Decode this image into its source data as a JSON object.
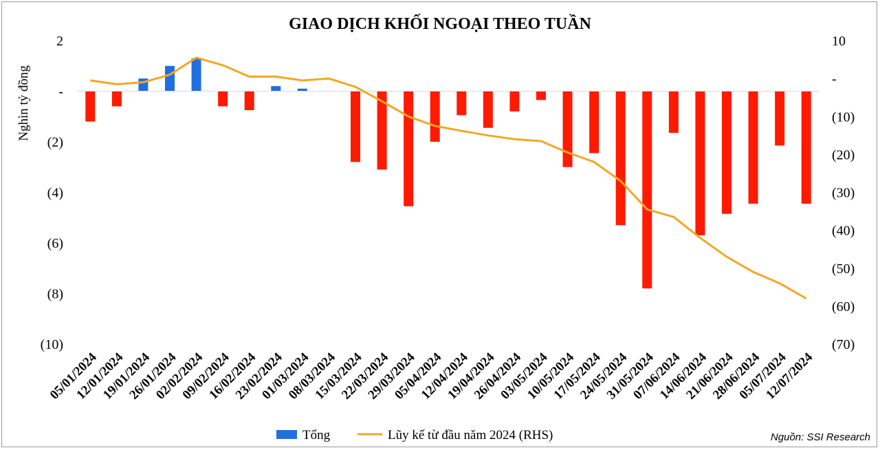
{
  "chart_data": {
    "type": "bar",
    "title": "GIAO DỊCH KHỐI NGOẠI THEO TUẦN",
    "ylabel": "Nghìn tỷ đồng",
    "source": "Nguồn: SSI Research",
    "categories": [
      "05/01/2024",
      "12/01/2024",
      "19/01/2024",
      "26/01/2024",
      "02/02/2024",
      "09/02/2024",
      "16/02/2024",
      "23/02/2024",
      "01/03/2024",
      "08/03/2024",
      "15/03/2024",
      "22/03/2024",
      "29/03/2024",
      "05/04/2024",
      "12/04/2024",
      "19/04/2024",
      "26/04/2024",
      "03/05/2024",
      "10/05/2024",
      "17/05/2024",
      "24/05/2024",
      "31/05/2024",
      "07/06/2024",
      "14/06/2024",
      "21/06/2024",
      "28/06/2024",
      "05/07/2024",
      "12/07/2024"
    ],
    "series": [
      {
        "name": "Tổng",
        "axis": "left",
        "values": [
          -1.2,
          -0.6,
          0.5,
          1.0,
          1.3,
          -0.6,
          -0.75,
          0.2,
          0.1,
          0,
          -2.8,
          -3.1,
          -4.55,
          -2.0,
          -0.95,
          -1.45,
          -0.8,
          -0.35,
          -3.0,
          -2.45,
          -5.3,
          -7.8,
          -1.65,
          -5.7,
          -4.85,
          -4.45,
          -2.15,
          -4.45
        ],
        "positive_color": "#1f6fe0",
        "negative_color": "#ff1a00"
      },
      {
        "name": "Lũy kế từ đầu năm 2024 (RHS)",
        "axis": "right",
        "type": "line",
        "values": [
          -0.5,
          -1.5,
          -1.0,
          1.0,
          5.5,
          3.5,
          0.5,
          0.5,
          -0.5,
          0.0,
          -2.2,
          -6.0,
          -10.0,
          -12.5,
          -13.8,
          -15.0,
          -16.0,
          -16.5,
          -19.5,
          -22.0,
          -27.0,
          -34.5,
          -36.5,
          -42.0,
          -47.0,
          -51.0,
          -54.0,
          -58.0
        ],
        "color": "#f5a623"
      }
    ],
    "y_left": {
      "min": -10,
      "max": 2,
      "ticks": [
        2,
        0,
        -2,
        -4,
        -6,
        -8,
        -10
      ],
      "tick_labels": [
        "2",
        "-",
        "(2)",
        "(4)",
        "(6)",
        "(8)",
        "(10)"
      ]
    },
    "y_right": {
      "min": -70,
      "max": 10,
      "ticks": [
        10,
        0,
        -10,
        -20,
        -30,
        -40,
        -50,
        -60,
        -70
      ],
      "tick_labels": [
        "10",
        "-",
        "(10)",
        "(20)",
        "(30)",
        "(40)",
        "(50)",
        "(60)",
        "(70)"
      ]
    },
    "grid": false,
    "legend_position": "bottom"
  }
}
